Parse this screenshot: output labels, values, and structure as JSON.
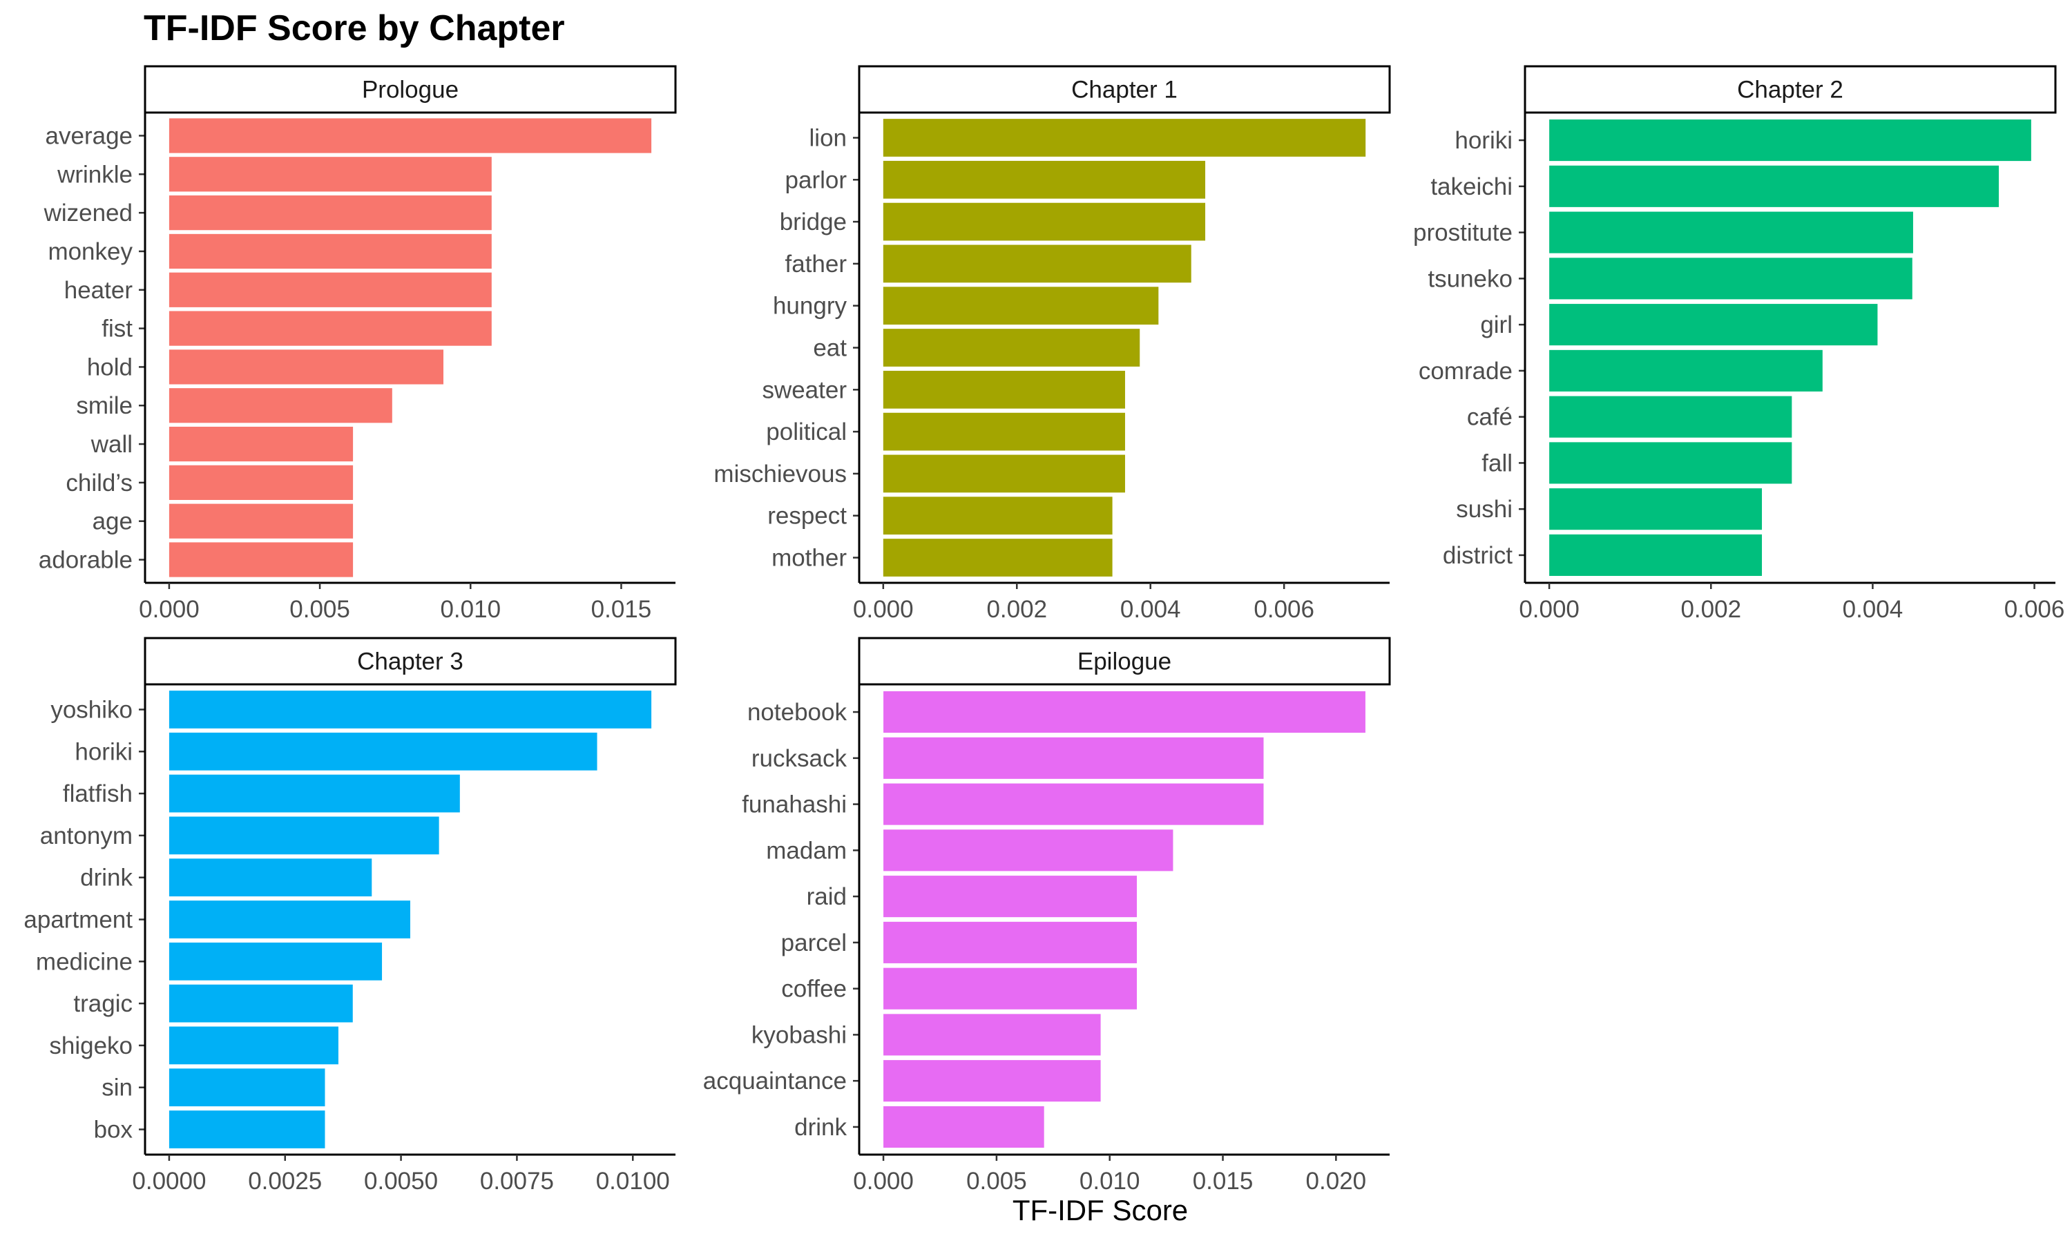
{
  "title": "TF-IDF Score by Chapter",
  "x_axis_title": "TF-IDF Score",
  "chart_data": [
    {
      "type": "bar",
      "orientation": "horizontal",
      "panel": "Prologue",
      "color": "#F8766D",
      "categories": [
        "average",
        "wrinkle",
        "wizened",
        "monkey",
        "heater",
        "fist",
        "hold",
        "smile",
        "wall",
        "child’s",
        "age",
        "adorable"
      ],
      "values": [
        0.016,
        0.0107,
        0.0107,
        0.0107,
        0.0107,
        0.0107,
        0.0091,
        0.0074,
        0.0061,
        0.0061,
        0.0061,
        0.0061
      ],
      "xlim": [
        -0.0008,
        0.0168
      ],
      "ticks": [
        0.0,
        0.005,
        0.01,
        0.015
      ],
      "tick_labels": [
        "0.000",
        "0.005",
        "0.010",
        "0.015"
      ]
    },
    {
      "type": "bar",
      "orientation": "horizontal",
      "panel": "Chapter 1",
      "color": "#A3A500",
      "categories": [
        "lion",
        "parlor",
        "bridge",
        "father",
        "hungry",
        "eat",
        "sweater",
        "political",
        "mischievous",
        "respect",
        "mother"
      ],
      "values": [
        0.00722,
        0.00482,
        0.00482,
        0.00461,
        0.00412,
        0.00384,
        0.00362,
        0.00362,
        0.00362,
        0.00343,
        0.00343
      ],
      "xlim": [
        -0.00036,
        0.00758
      ],
      "ticks": [
        0.0,
        0.002,
        0.004,
        0.006
      ],
      "tick_labels": [
        "0.000",
        "0.002",
        "0.004",
        "0.006"
      ]
    },
    {
      "type": "bar",
      "orientation": "horizontal",
      "panel": "Chapter 2",
      "color": "#00BF7D",
      "categories": [
        "horiki",
        "takeichi",
        "prostitute",
        "tsuneko",
        "girl",
        "comrade",
        "café",
        "fall",
        "sushi",
        "district"
      ],
      "values": [
        0.00596,
        0.00556,
        0.0045,
        0.00449,
        0.00406,
        0.00338,
        0.003,
        0.003,
        0.00263,
        0.00263
      ],
      "xlim": [
        -0.0003,
        0.00626
      ],
      "ticks": [
        0.0,
        0.002,
        0.004,
        0.006
      ],
      "tick_labels": [
        "0.000",
        "0.002",
        "0.004",
        "0.006"
      ]
    },
    {
      "type": "bar",
      "orientation": "horizontal",
      "panel": "Chapter 3",
      "color": "#00B0F6",
      "categories": [
        "yoshiko",
        "horiki",
        "flatfish",
        "antonym",
        "drink",
        "apartment",
        "medicine",
        "tragic",
        "shigeko",
        "sin",
        "box"
      ],
      "values": [
        0.0104,
        0.00923,
        0.00627,
        0.00582,
        0.00437,
        0.0052,
        0.00459,
        0.00396,
        0.00365,
        0.00336,
        0.00336
      ],
      "xlim": [
        -0.00052,
        0.01092
      ],
      "ticks": [
        0.0,
        0.0025,
        0.005,
        0.0075,
        0.01
      ],
      "tick_labels": [
        "0.0000",
        "0.0025",
        "0.0050",
        "0.0075",
        "0.0100"
      ]
    },
    {
      "type": "bar",
      "orientation": "horizontal",
      "panel": "Epilogue",
      "color": "#E76BF3",
      "categories": [
        "notebook",
        "rucksack",
        "funahashi",
        "madam",
        "raid",
        "parcel",
        "coffee",
        "kyobashi",
        "acquaintance",
        "drink"
      ],
      "values": [
        0.0213,
        0.0168,
        0.0168,
        0.0128,
        0.0112,
        0.0112,
        0.0112,
        0.0096,
        0.0096,
        0.0071
      ],
      "xlim": [
        -0.00107,
        0.02237
      ],
      "ticks": [
        0.0,
        0.005,
        0.01,
        0.015,
        0.02
      ],
      "tick_labels": [
        "0.000",
        "0.005",
        "0.010",
        "0.015",
        "0.020"
      ]
    }
  ]
}
